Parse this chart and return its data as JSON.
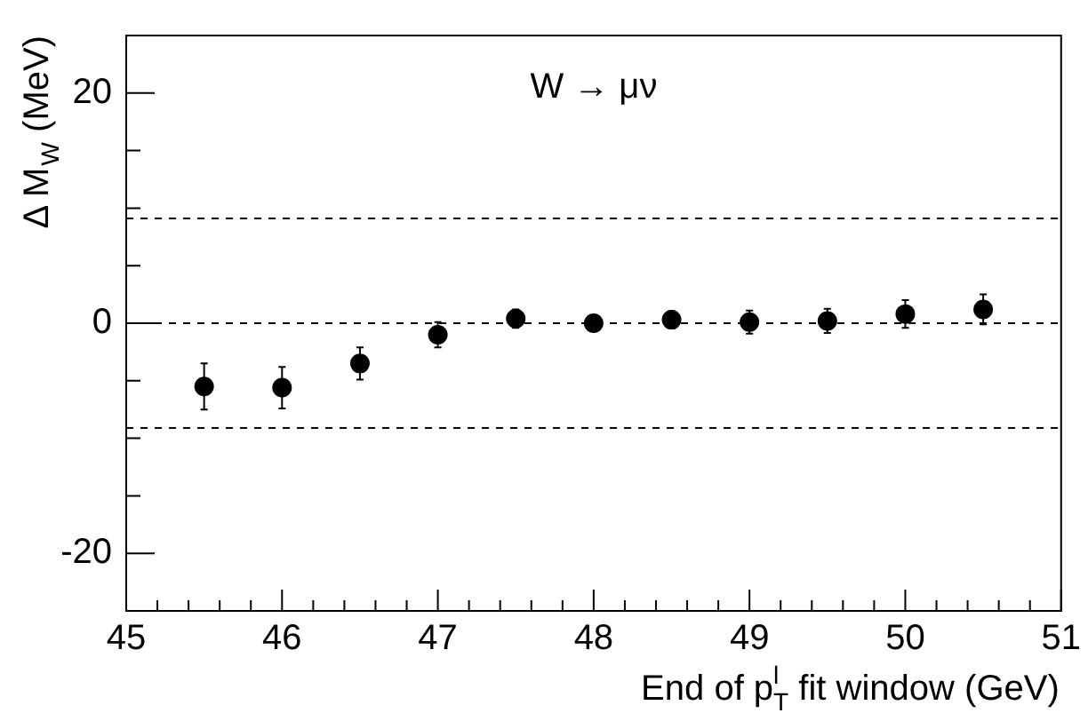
{
  "chart_data": {
    "type": "scatter",
    "annotations": [
      "W → μν"
    ],
    "xlabel": "End of p$_{T}$$^{l}$ fit window (GeV)",
    "ylabel": "Δ M$_{W}$ (MeV)",
    "x": [
      45.5,
      46,
      46.5,
      47,
      47.5,
      48,
      48.5,
      49,
      49.5,
      50,
      50.5
    ],
    "series": [
      {
        "color": "#000000",
        "values": [
          -5.5,
          -5.6,
          -3.5,
          -1.0,
          0.4,
          0,
          0.3,
          0.1,
          0.2,
          0.8,
          1.2
        ],
        "errors": [
          2.0,
          1.8,
          1.4,
          1.1,
          0.8,
          null,
          0.75,
          1.0,
          1.05,
          1.2,
          1.3
        ]
      }
    ],
    "marker": "circle",
    "xlim": [
      45,
      51
    ],
    "ylim": [
      -25,
      25
    ],
    "xticks": [
      45,
      {
        "value": 45.2,
        "label": null
      },
      {
        "value": 45.4,
        "label": null
      },
      {
        "value": 45.6,
        "label": null
      },
      {
        "value": 45.8,
        "label": null
      },
      46,
      {
        "value": 46.2,
        "label": null
      },
      {
        "value": 46.4,
        "label": null
      },
      {
        "value": 46.6,
        "label": null
      },
      {
        "value": 46.8,
        "label": null
      },
      47,
      {
        "value": 47.2,
        "label": null
      },
      {
        "value": 47.4,
        "label": null
      },
      {
        "value": 47.6,
        "label": null
      },
      {
        "value": 47.8,
        "label": null
      },
      48,
      {
        "value": 48.2,
        "label": null
      },
      {
        "value": 48.4,
        "label": null
      },
      {
        "value": 48.6,
        "label": null
      },
      {
        "value": 48.8,
        "label": null
      },
      49,
      {
        "value": 49.2,
        "label": null
      },
      {
        "value": 49.4,
        "label": null
      },
      {
        "value": 49.6,
        "label": null
      },
      {
        "value": 49.8,
        "label": null
      },
      50,
      {
        "value": 50.2,
        "label": null
      },
      {
        "value": 50.4,
        "label": null
      },
      {
        "value": 50.6,
        "label": null
      },
      {
        "value": 50.8,
        "label": null
      },
      51
    ],
    "yticks": [
      -20,
      {
        "value": -15,
        "label": null
      },
      {
        "value": -10,
        "label": null
      },
      {
        "value": -5,
        "label": null
      },
      0,
      {
        "value": 5,
        "label": null
      },
      {
        "value": 10,
        "label": null
      },
      {
        "value": 15,
        "label": null
      },
      20
    ],
    "ref_lines": [
      {
        "axis": "y",
        "value": 9.1,
        "line_style": "dashed",
        "color": "#000000"
      },
      {
        "axis": "y",
        "value": 0,
        "line_style": "dashed",
        "color": "#000000"
      },
      {
        "axis": "y",
        "value": -9.1,
        "line_style": "dashed",
        "color": "#000000"
      }
    ],
    "grid": false,
    "legend": false
  }
}
